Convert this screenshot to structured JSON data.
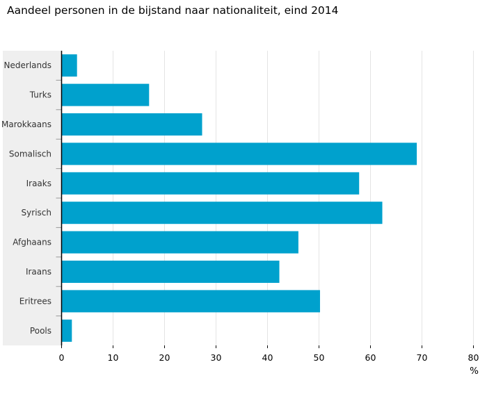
{
  "chart_data": {
    "type": "bar",
    "orientation": "horizontal",
    "title": "Aandeel personen in de bijstand naar nationaliteit, eind 2014",
    "categories": [
      "Nederlands",
      "Turks",
      "Marokkaans",
      "Somalisch",
      "Iraaks",
      "Syrisch",
      "Afghaans",
      "Iraans",
      "Eritrees",
      "Pools"
    ],
    "values": [
      3,
      17,
      27.3,
      69,
      57.8,
      62.3,
      46,
      42.3,
      50.2,
      2
    ],
    "xlabel": "%",
    "ylabel": "",
    "xlim": [
      0,
      80
    ],
    "xticks": [
      0,
      10,
      20,
      30,
      40,
      50,
      60,
      70,
      80
    ],
    "grid": true,
    "bar_color": "#00a1cd",
    "category_band_color": "#efefef",
    "gridline_color": "#e4e4e4"
  }
}
